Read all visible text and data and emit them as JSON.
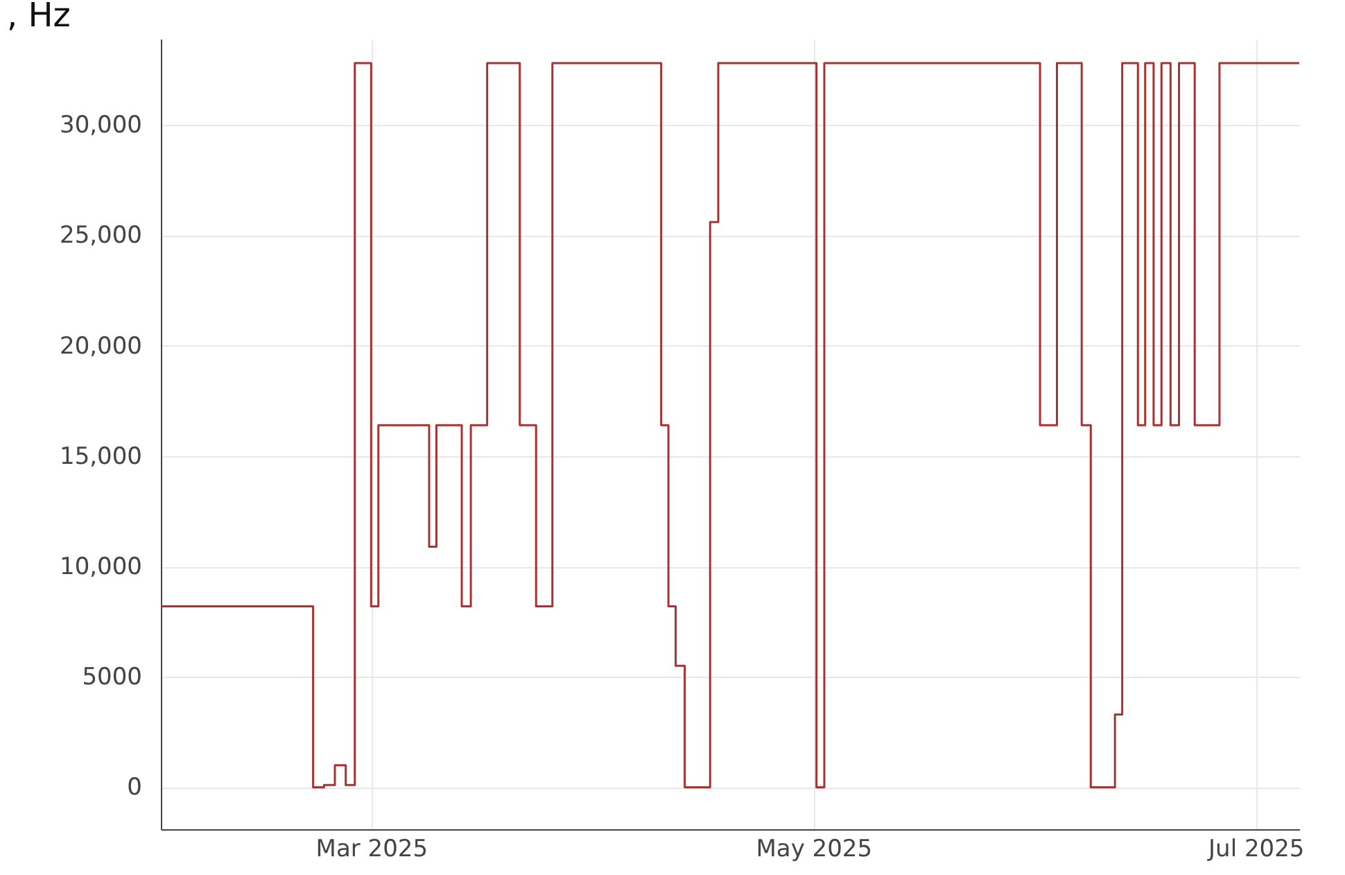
{
  "chart_data": {
    "type": "step",
    "title": ", Hz",
    "x": [
      "2025-01-31",
      "2025-02-21",
      "2025-02-22T12:00",
      "2025-02-24",
      "2025-02-25T12:00",
      "2025-02-26T18:00",
      "2025-03-01",
      "2025-03-02",
      "2025-03-09",
      "2025-03-10",
      "2025-03-13T12:00",
      "2025-03-14T18:00",
      "2025-03-17",
      "2025-03-21T12:00",
      "2025-03-23T18:00",
      "2025-03-26",
      "2025-04-10",
      "2025-04-11",
      "2025-04-12",
      "2025-04-13T06:00",
      "2025-04-16T18:00",
      "2025-04-17T21:00",
      "2025-05-01T10:00",
      "2025-05-02T12:00",
      "2025-06-01T06:00",
      "2025-06-03T14:00",
      "2025-06-07",
      "2025-06-08T06:00",
      "2025-06-11T14:00",
      "2025-06-12T14:00",
      "2025-06-14T18:00",
      "2025-06-15T18:00",
      "2025-06-16T22:00",
      "2025-06-18",
      "2025-06-19T06:00",
      "2025-06-20T10:00",
      "2025-06-22T14:00",
      "2025-06-26",
      "2025-07-07"
    ],
    "series": [
      {
        "color": "#a83232",
        "values": [
          8200,
          0,
          100,
          1000,
          100,
          32800,
          8200,
          16400,
          10900,
          16400,
          8200,
          16400,
          32800,
          16400,
          8200,
          32800,
          16400,
          8200,
          5500,
          0,
          25600,
          32800,
          0,
          32800,
          16400,
          32800,
          16400,
          0,
          3300,
          32800,
          16400,
          32800,
          16400,
          32800,
          16400,
          32800,
          16400,
          32800,
          32800
        ]
      }
    ],
    "xlim": [
      "2025-01-31",
      "2025-07-07"
    ],
    "xticks": [
      {
        "value": "2025-03-01",
        "label": "Mar 2025"
      },
      {
        "value": "2025-05-01",
        "label": "May 2025"
      },
      {
        "value": "2025-07-01",
        "label": "Jul 2025"
      }
    ],
    "ylim": [
      -1900,
      33900
    ],
    "yticks": [
      {
        "value": 0,
        "label": "0"
      },
      {
        "value": 5000,
        "label": "5000"
      },
      {
        "value": 10000,
        "label": "10,000"
      },
      {
        "value": 15000,
        "label": "15,000"
      },
      {
        "value": 20000,
        "label": "20,000"
      },
      {
        "value": 25000,
        "label": "25,000"
      },
      {
        "value": 30000,
        "label": "30,000"
      }
    ],
    "grid": true,
    "line_style": "solid",
    "marker": "none"
  }
}
